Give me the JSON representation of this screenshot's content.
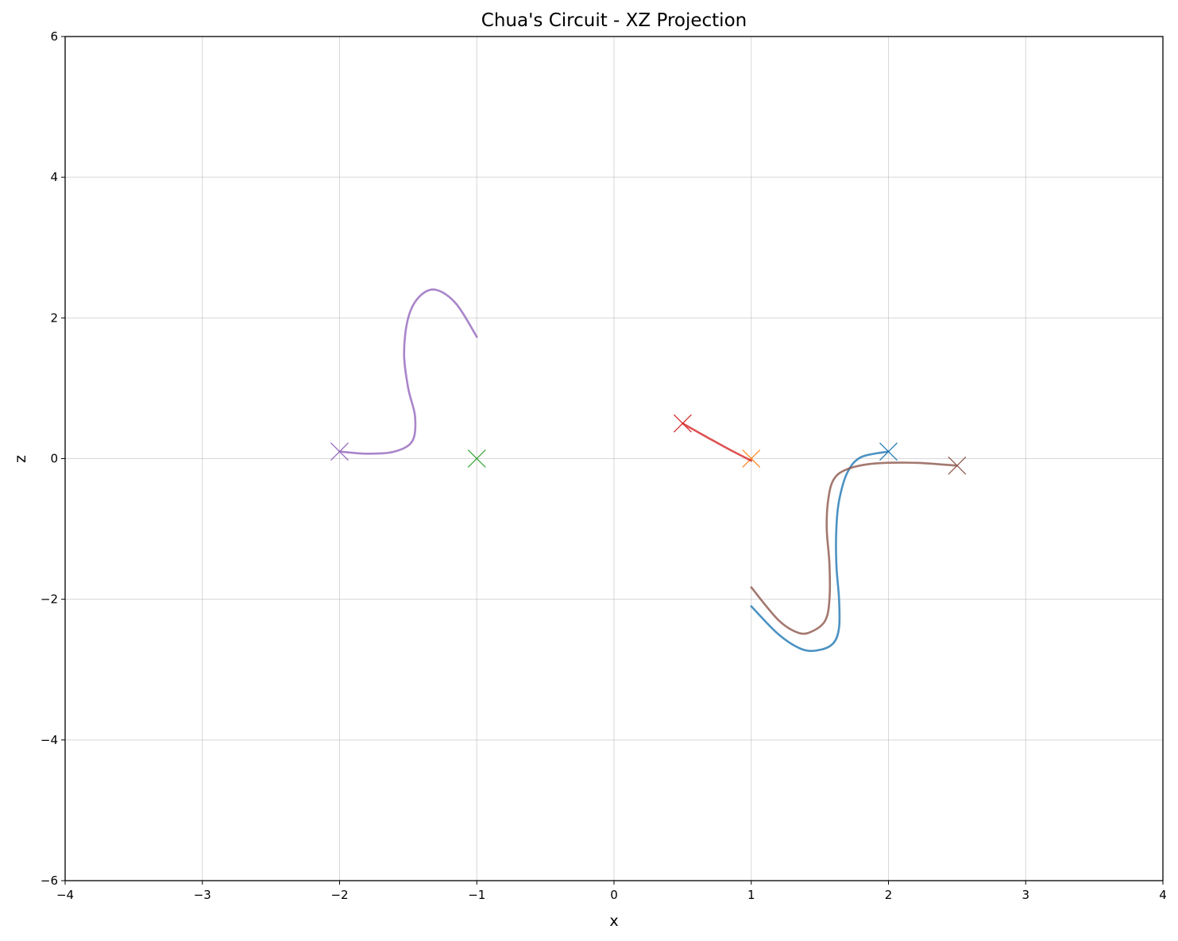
{
  "chart_data": {
    "type": "line",
    "title": "Chua's Circuit - XZ Projection",
    "xlabel": "x",
    "ylabel": "z",
    "xlim": [
      -4,
      4
    ],
    "ylim": [
      -6,
      6
    ],
    "xticks": [
      -4,
      -3,
      -2,
      -1,
      0,
      1,
      2,
      3,
      4
    ],
    "yticks": [
      -6,
      -4,
      -2,
      0,
      2,
      4,
      6
    ],
    "grid": true,
    "legend": "none",
    "series": [
      {
        "color": "#1f77b4",
        "start": [
          2.0,
          0.1
        ],
        "x": [
          2.0,
          1.8,
          1.7,
          1.64,
          1.62,
          1.62,
          1.64,
          1.64,
          1.6,
          1.5,
          1.37,
          1.2,
          1.0
        ],
        "y": [
          0.1,
          0.02,
          -0.2,
          -0.6,
          -1.0,
          -1.5,
          -2.0,
          -2.4,
          -2.62,
          -2.72,
          -2.71,
          -2.5,
          -2.1
        ]
      },
      {
        "color": "#ff7f0e",
        "start": [
          1.0,
          0.0
        ],
        "x": [
          1.0
        ],
        "y": [
          0.0
        ]
      },
      {
        "color": "#2ca02c",
        "start": [
          -1.0,
          0.0
        ],
        "x": [
          -1.0
        ],
        "y": [
          0.0
        ]
      },
      {
        "color": "#d62728",
        "start": [
          0.5,
          0.5
        ],
        "x": [
          0.5,
          0.7,
          0.85,
          1.0
        ],
        "y": [
          0.5,
          0.28,
          0.12,
          -0.03
        ]
      },
      {
        "color": "#9467bd",
        "start": [
          -2.0,
          0.1
        ],
        "x": [
          -2.0,
          -1.8,
          -1.6,
          -1.47,
          -1.45,
          -1.5,
          -1.53,
          -1.5,
          -1.42,
          -1.3,
          -1.15,
          -1.0
        ],
        "y": [
          0.1,
          0.07,
          0.1,
          0.25,
          0.6,
          1.0,
          1.5,
          2.0,
          2.3,
          2.4,
          2.2,
          1.73
        ]
      },
      {
        "color": "#8c564b",
        "start": [
          2.5,
          -0.1
        ],
        "x": [
          2.5,
          2.2,
          1.9,
          1.7,
          1.6,
          1.56,
          1.55,
          1.57,
          1.57,
          1.54,
          1.45,
          1.35,
          1.2,
          1.0
        ],
        "y": [
          -0.1,
          -0.06,
          -0.07,
          -0.15,
          -0.3,
          -0.6,
          -1.0,
          -1.5,
          -2.0,
          -2.3,
          -2.45,
          -2.48,
          -2.3,
          -1.83
        ]
      }
    ]
  }
}
